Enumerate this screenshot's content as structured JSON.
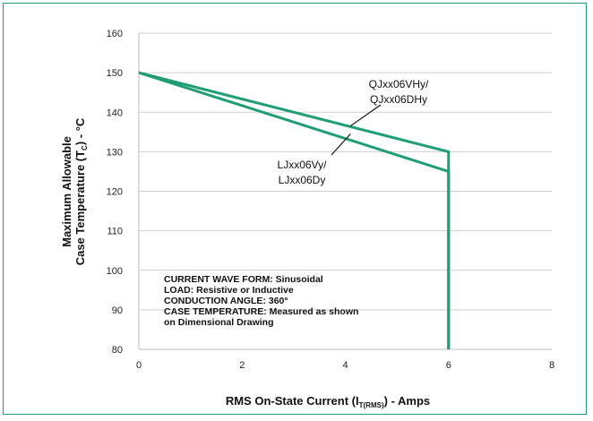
{
  "chart_data": {
    "type": "line",
    "xlabel": "RMS On-State Current (I",
    "xlabel_sub": "T(RMS)",
    "xlabel_end": ") - Amps",
    "ylabel_line1": "Maximum Allowable",
    "ylabel_line2": "Case Temperature (T",
    "ylabel_sub": "C",
    "ylabel_end": ") - °C",
    "xlim": [
      0,
      8
    ],
    "ylim": [
      80,
      160
    ],
    "x_ticks": [
      0,
      2,
      4,
      6,
      8
    ],
    "y_ticks": [
      80,
      90,
      100,
      110,
      120,
      130,
      140,
      150,
      160
    ],
    "grid": "horizontal",
    "line_color": "#1f9e72",
    "gridline_color": "#cfcfcf",
    "series": [
      {
        "name": "QJxx06VHy/ QJxx06DHy",
        "x": [
          0,
          6,
          6
        ],
        "y": [
          150,
          130,
          80
        ]
      },
      {
        "name": "LJxx06Vy/ LJxx06Dy",
        "x": [
          0,
          6,
          6
        ],
        "y": [
          150,
          125,
          80
        ]
      }
    ],
    "annotations": [
      {
        "lines": [
          "QJxx06VHy/",
          "QJxx06DHy"
        ],
        "target_x": 4.1,
        "target_y": 136.5
      },
      {
        "lines": [
          "LJxx06Vy/",
          "LJxx06Dy"
        ],
        "target_x": 4.1,
        "target_y": 134.5
      }
    ],
    "notes": [
      "CURRENT WAVE FORM: Sinusoidal",
      "LOAD: Resistive or Inductive",
      "CONDUCTION ANGLE: 360°",
      "CASE TEMPERATURE: Measured as shown",
      "on Dimensional Drawing"
    ]
  }
}
